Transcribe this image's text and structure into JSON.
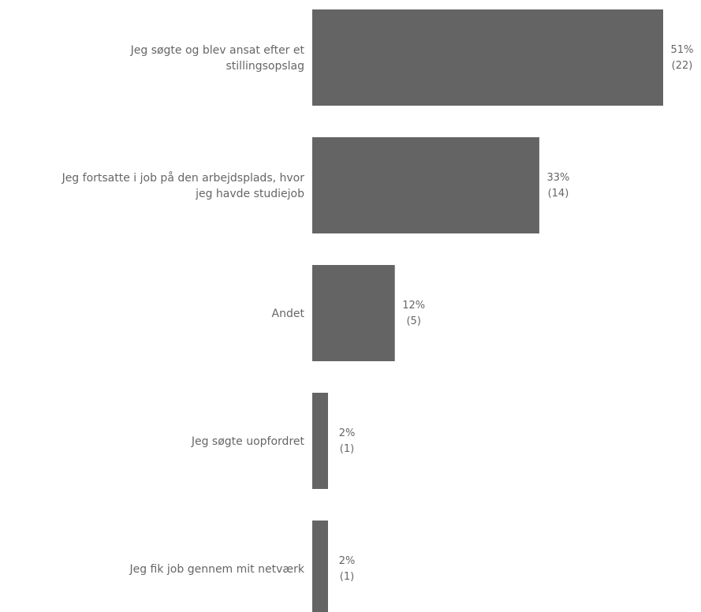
{
  "chart_data": {
    "type": "bar",
    "orientation": "horizontal",
    "categories": [
      "Jeg søgte og blev ansat efter et stillingsopslag",
      "Jeg fortsatte i job på den arbejdsplads, hvor jeg havde studiejob",
      "Andet",
      "Jeg søgte uopfordret",
      "Jeg fik job gennem mit netværk"
    ],
    "category_lines": [
      [
        "Jeg søgte og blev ansat efter et",
        "stillingsopslag"
      ],
      [
        "Jeg fortsatte i job på den arbejdsplads, hvor",
        "jeg havde studiejob"
      ],
      [
        "Andet"
      ],
      [
        "Jeg søgte uopfordret"
      ],
      [
        "Jeg fik job gennem mit netværk"
      ]
    ],
    "values": [
      51,
      33,
      12,
      2,
      2
    ],
    "counts": [
      22,
      14,
      5,
      1,
      1
    ],
    "value_labels": [
      "51%",
      "33%",
      "12%",
      "2%",
      "2%"
    ],
    "count_labels": [
      "(22)",
      "(14)",
      "(5)",
      "(1)",
      "(1)"
    ],
    "unit": "%",
    "title": "",
    "xlabel": "",
    "ylabel": "",
    "xlim": [
      0,
      51
    ],
    "grid": false,
    "legend": "none",
    "bar_color": "#646464",
    "label_color": "#666666"
  }
}
